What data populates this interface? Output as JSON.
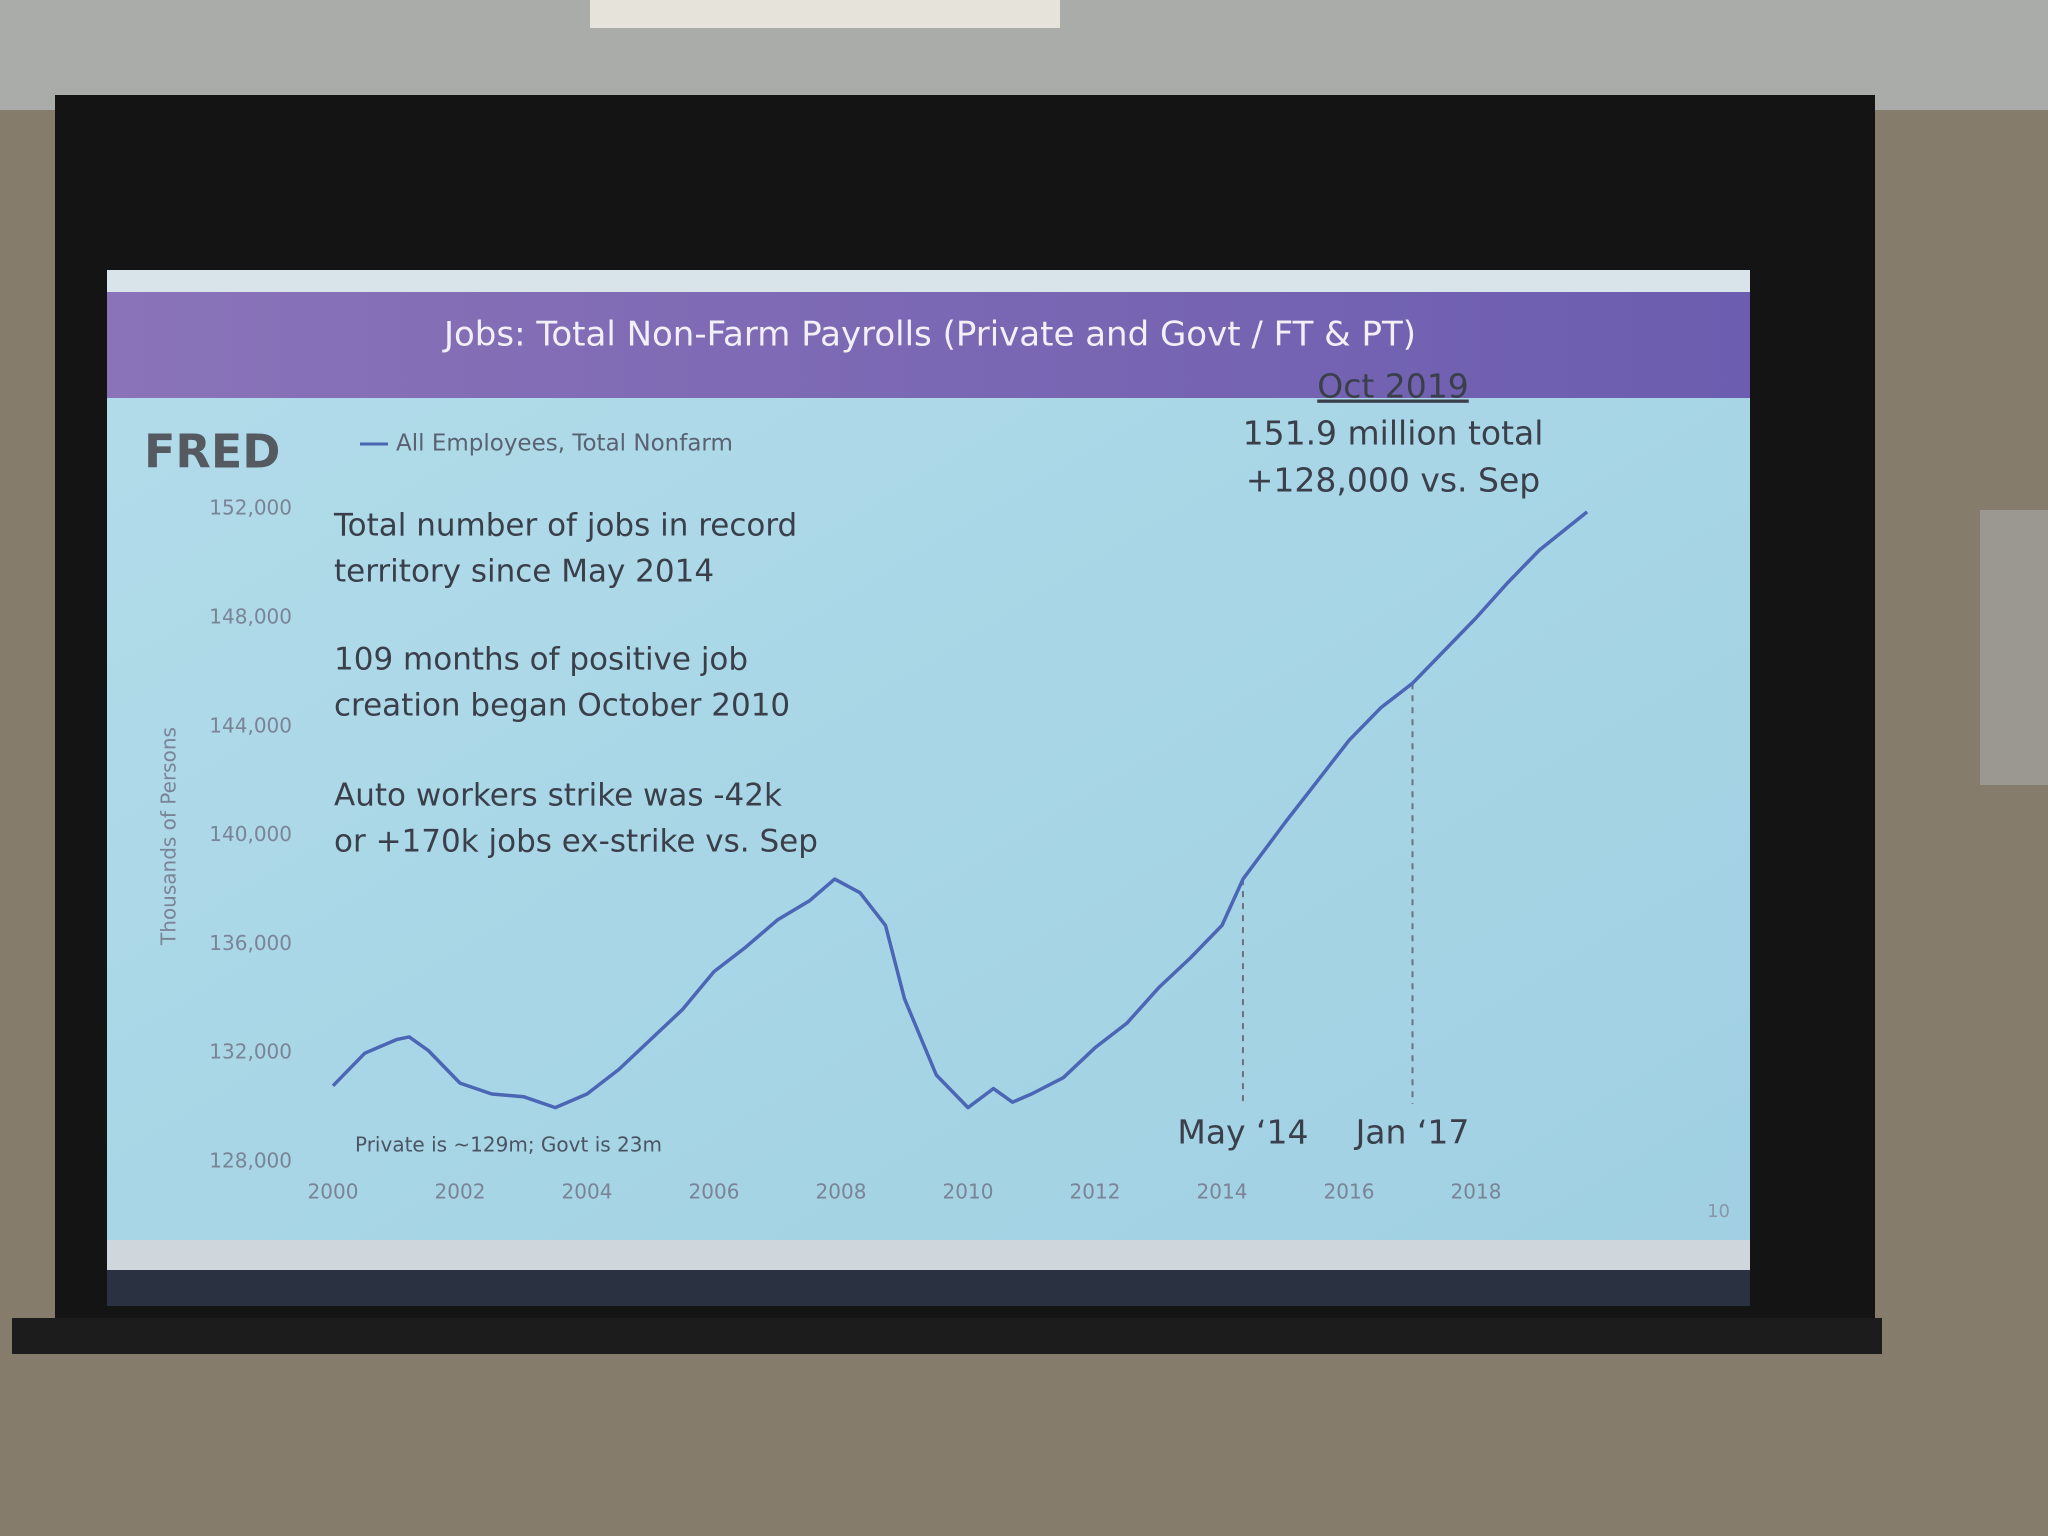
{
  "chart_data": {
    "type": "line",
    "title": "Jobs:  Total Non-Farm Payrolls (Private and Govt / FT & PT)",
    "logo": "FRED",
    "y_label": "Thousands of Persons",
    "series": [
      {
        "name": "All Employees, Total Nonfarm",
        "color": "#4a66b5",
        "x": [
          2000.0,
          2000.5,
          2001.0,
          2001.2,
          2001.5,
          2002.0,
          2002.5,
          2003.0,
          2003.5,
          2004.0,
          2004.5,
          2005.0,
          2005.5,
          2006.0,
          2006.5,
          2007.0,
          2007.5,
          2007.9,
          2008.3,
          2008.7,
          2009.0,
          2009.5,
          2010.0,
          2010.4,
          2010.7,
          2011.0,
          2011.5,
          2012.0,
          2012.5,
          2013.0,
          2013.5,
          2014.0,
          2014.33,
          2015.0,
          2015.5,
          2016.0,
          2016.5,
          2017.0,
          2017.5,
          2018.0,
          2018.5,
          2019.0,
          2019.75
        ],
        "values": [
          130800,
          132000,
          132500,
          132600,
          132100,
          130900,
          130500,
          130400,
          130000,
          130500,
          131400,
          132500,
          133600,
          135000,
          135900,
          136900,
          137600,
          138400,
          137900,
          136700,
          134000,
          131200,
          130000,
          130700,
          130200,
          130500,
          131100,
          132200,
          133100,
          134400,
          135500,
          136700,
          138400,
          140500,
          142000,
          143500,
          144700,
          145600,
          146800,
          148000,
          149300,
          150500,
          151900
        ]
      }
    ],
    "xlim": [
      2000,
      2019.9
    ],
    "xticks": [
      2000,
      2002,
      2004,
      2006,
      2008,
      2010,
      2012,
      2014,
      2016,
      2018
    ],
    "ylim": [
      128000,
      153000
    ],
    "yticks": [
      {
        "value": 128000,
        "label": "128,000"
      },
      {
        "value": 132000,
        "label": "132,000"
      },
      {
        "value": 136000,
        "label": "136,000"
      },
      {
        "value": 140000,
        "label": "140,000"
      },
      {
        "value": 144000,
        "label": "144,000"
      },
      {
        "value": 148000,
        "label": "148,000"
      },
      {
        "value": 152000,
        "label": "152,000"
      }
    ],
    "markers": [
      {
        "x": 2014.33,
        "y": 138400,
        "label": "May ‘14"
      },
      {
        "x": 2017.0,
        "y": 145600,
        "label": "Jan ‘17"
      }
    ],
    "notes": [
      [
        "Total number of jobs in record",
        "territory since May 2014"
      ],
      [
        "109 months of positive job",
        "creation began October 2010"
      ],
      [
        "Auto workers strike was -42k",
        "or +170k jobs ex-strike vs. Sep"
      ]
    ],
    "callout": [
      "Oct 2019",
      "151.9 million total",
      "+128,000 vs. Sep"
    ],
    "footnote": "Private is ~129m; Govt is 23m",
    "slide_number": "10"
  }
}
